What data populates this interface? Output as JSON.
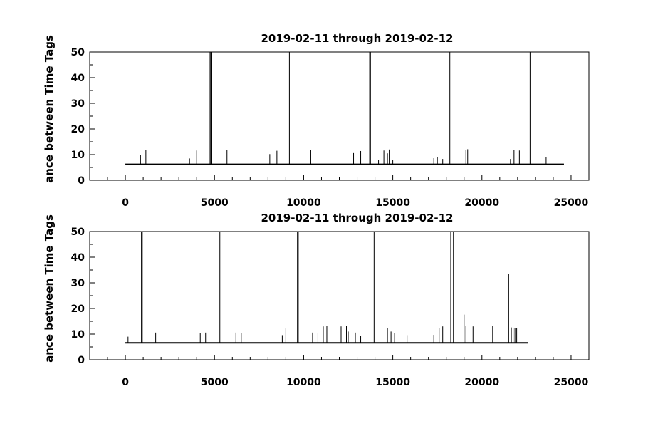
{
  "chart_data": [
    {
      "type": "line",
      "title": "2019-02-11 through 2019-02-12",
      "xlabel": "",
      "ylabel": "ance between Time Tags",
      "xlim": [
        -2000,
        26000
      ],
      "ylim": [
        0,
        50
      ],
      "x_ticks": [
        0,
        5000,
        10000,
        15000,
        20000,
        25000
      ],
      "x_tick_labels": [
        "0",
        "5000",
        "10000",
        "15000",
        "20000",
        "25000"
      ],
      "y_ticks": [
        0,
        10,
        20,
        30,
        40,
        50
      ],
      "y_tick_labels": [
        "0",
        "10",
        "20",
        "30",
        "40",
        "50"
      ],
      "grid": false,
      "baseline": 6.2,
      "x_start": 0,
      "x_end": 24600,
      "series": [
        {
          "values_note": "",
          "spikes": [
            {
              "x": 850,
              "y": 9.8
            },
            {
              "x": 1150,
              "y": 11.8
            },
            {
              "x": 3600,
              "y": 8.5
            },
            {
              "x": 4000,
              "y": 11.6
            },
            {
              "x": 4750,
              "y": 50
            },
            {
              "x": 4800,
              "y": 50
            },
            {
              "x": 4850,
              "y": 50
            },
            {
              "x": 5700,
              "y": 11.8
            },
            {
              "x": 8100,
              "y": 10.2
            },
            {
              "x": 8500,
              "y": 11.5
            },
            {
              "x": 9200,
              "y": 50
            },
            {
              "x": 10400,
              "y": 11.7
            },
            {
              "x": 12800,
              "y": 10.6
            },
            {
              "x": 13200,
              "y": 11.4
            },
            {
              "x": 13700,
              "y": 50
            },
            {
              "x": 13750,
              "y": 50
            },
            {
              "x": 14200,
              "y": 7.8
            },
            {
              "x": 14500,
              "y": 11.6
            },
            {
              "x": 14700,
              "y": 10.5
            },
            {
              "x": 14800,
              "y": 12.0
            },
            {
              "x": 15000,
              "y": 8.0
            },
            {
              "x": 17300,
              "y": 8.6
            },
            {
              "x": 17500,
              "y": 9.0
            },
            {
              "x": 17800,
              "y": 8.3
            },
            {
              "x": 18200,
              "y": 50
            },
            {
              "x": 19100,
              "y": 11.8
            },
            {
              "x": 19200,
              "y": 12.1
            },
            {
              "x": 21600,
              "y": 8.3
            },
            {
              "x": 21800,
              "y": 11.9
            },
            {
              "x": 22100,
              "y": 11.6
            },
            {
              "x": 22700,
              "y": 50
            },
            {
              "x": 23600,
              "y": 9.1
            }
          ]
        }
      ]
    },
    {
      "type": "line",
      "title": "2019-02-11 through 2019-02-12",
      "xlabel": "",
      "ylabel": "ance between Time Tags",
      "xlim": [
        -2000,
        26000
      ],
      "ylim": [
        0,
        50
      ],
      "x_ticks": [
        0,
        5000,
        10000,
        15000,
        20000,
        25000
      ],
      "x_tick_labels": [
        "0",
        "5000",
        "10000",
        "15000",
        "20000",
        "25000"
      ],
      "y_ticks": [
        0,
        10,
        20,
        30,
        40,
        50
      ],
      "y_tick_labels": [
        "0",
        "10",
        "20",
        "30",
        "40",
        "50"
      ],
      "grid": false,
      "baseline": 6.6,
      "x_start": 0,
      "x_end": 22600,
      "series": [
        {
          "spikes": [
            {
              "x": 150,
              "y": 9.0
            },
            {
              "x": 900,
              "y": 50
            },
            {
              "x": 950,
              "y": 50
            },
            {
              "x": 1700,
              "y": 10.6
            },
            {
              "x": 4200,
              "y": 10.3
            },
            {
              "x": 4500,
              "y": 10.6
            },
            {
              "x": 5300,
              "y": 50
            },
            {
              "x": 6200,
              "y": 10.6
            },
            {
              "x": 6500,
              "y": 10.3
            },
            {
              "x": 8800,
              "y": 9.6
            },
            {
              "x": 9000,
              "y": 12.2
            },
            {
              "x": 9650,
              "y": 50
            },
            {
              "x": 9700,
              "y": 50
            },
            {
              "x": 10500,
              "y": 10.6
            },
            {
              "x": 10800,
              "y": 10.3
            },
            {
              "x": 11100,
              "y": 13.0
            },
            {
              "x": 11300,
              "y": 13.1
            },
            {
              "x": 12100,
              "y": 13.0
            },
            {
              "x": 12400,
              "y": 13.2
            },
            {
              "x": 12500,
              "y": 11.0
            },
            {
              "x": 12900,
              "y": 10.6
            },
            {
              "x": 13200,
              "y": 9.4
            },
            {
              "x": 13950,
              "y": 50
            },
            {
              "x": 14700,
              "y": 12.3
            },
            {
              "x": 14900,
              "y": 11.0
            },
            {
              "x": 15100,
              "y": 10.4
            },
            {
              "x": 15800,
              "y": 9.6
            },
            {
              "x": 17300,
              "y": 9.7
            },
            {
              "x": 17600,
              "y": 12.5
            },
            {
              "x": 17800,
              "y": 13.0
            },
            {
              "x": 18250,
              "y": 50
            },
            {
              "x": 18400,
              "y": 50
            },
            {
              "x": 19000,
              "y": 17.6
            },
            {
              "x": 19100,
              "y": 13.1
            },
            {
              "x": 19500,
              "y": 13.0
            },
            {
              "x": 20600,
              "y": 13.1
            },
            {
              "x": 21500,
              "y": 33.6
            },
            {
              "x": 21650,
              "y": 12.6
            },
            {
              "x": 21750,
              "y": 12.4
            },
            {
              "x": 21850,
              "y": 12.5
            },
            {
              "x": 21950,
              "y": 12.3
            }
          ]
        }
      ]
    }
  ]
}
